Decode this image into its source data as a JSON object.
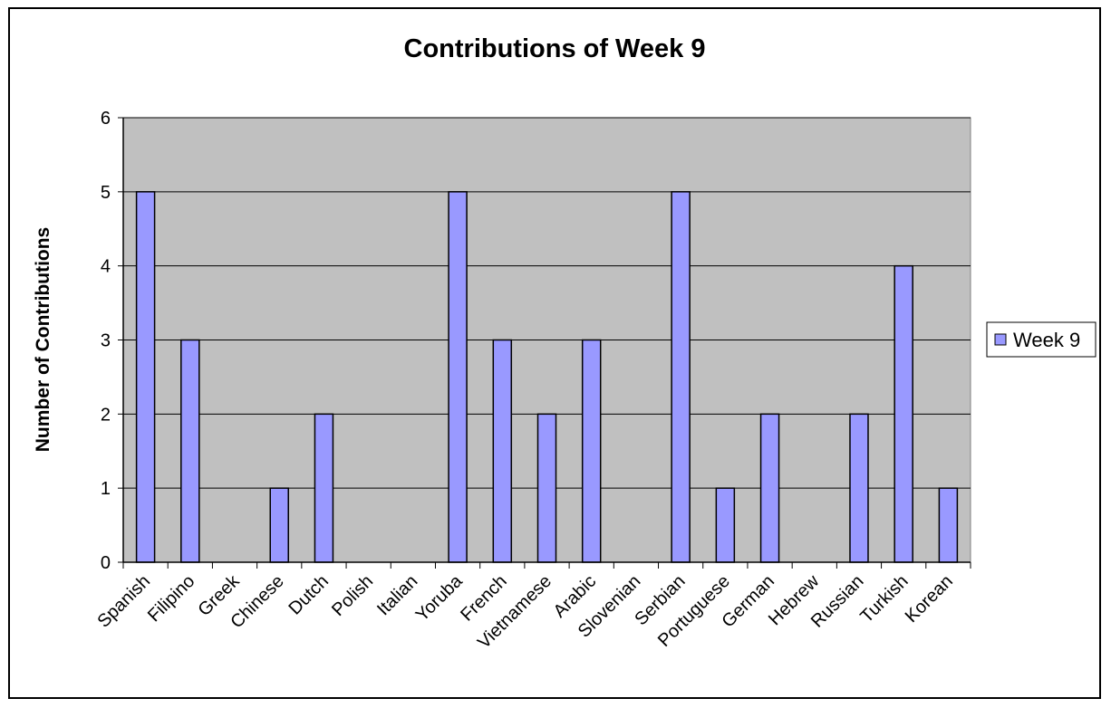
{
  "chart_data": {
    "type": "bar",
    "title": "Contributions of Week 9",
    "xlabel": "",
    "ylabel": "Number of Contributions",
    "ylim": [
      0,
      6
    ],
    "yticks": [
      "0",
      "1",
      "2",
      "3",
      "4",
      "5",
      "6"
    ],
    "categories": [
      "Spanish",
      "Filipino",
      "Greek",
      "Chinese",
      "Dutch",
      "Polish",
      "Italian",
      "Yoruba",
      "French",
      "Vietnamese",
      "Arabic",
      "Slovenian",
      "Serbian",
      "Portuguese",
      "German",
      "Hebrew",
      "Russian",
      "Turkish",
      "Korean"
    ],
    "series": [
      {
        "name": "Week 9",
        "values": [
          5,
          3,
          0,
          1,
          2,
          0,
          0,
          5,
          3,
          2,
          3,
          0,
          5,
          1,
          2,
          0,
          2,
          4,
          1
        ]
      }
    ],
    "grid": true,
    "legend_position": "right",
    "colors": {
      "bar": "#9999ff",
      "plot_background": "#c0c0c0",
      "bar_edge": "#000000"
    }
  }
}
